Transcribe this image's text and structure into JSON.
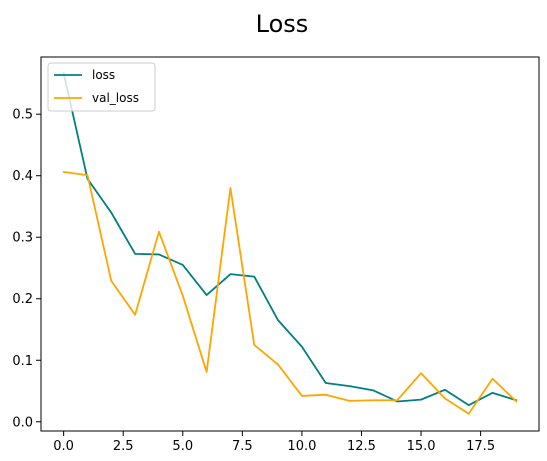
{
  "chart_data": {
    "type": "line",
    "title": "Loss",
    "xlabel": "",
    "ylabel": "",
    "xlim": [
      -0.95,
      19.95
    ],
    "ylim": [
      -0.015,
      0.593
    ],
    "xticks": [
      0.0,
      2.5,
      5.0,
      7.5,
      10.0,
      12.5,
      15.0,
      17.5
    ],
    "xtick_labels": [
      "0.0",
      "2.5",
      "5.0",
      "7.5",
      "10.0",
      "12.5",
      "15.0",
      "17.5"
    ],
    "yticks": [
      0.0,
      0.1,
      0.2,
      0.3,
      0.4,
      0.5
    ],
    "ytick_labels": [
      "0.0",
      "0.1",
      "0.2",
      "0.3",
      "0.4",
      "0.5"
    ],
    "grid": false,
    "legend_position": "top-left",
    "x": [
      0,
      1,
      2,
      3,
      4,
      5,
      6,
      7,
      8,
      9,
      10,
      11,
      12,
      13,
      14,
      15,
      16,
      17,
      18,
      19
    ],
    "series": [
      {
        "name": "loss",
        "color": "#008080",
        "values": [
          0.567,
          0.395,
          0.34,
          0.273,
          0.272,
          0.255,
          0.206,
          0.24,
          0.236,
          0.165,
          0.122,
          0.063,
          0.058,
          0.051,
          0.033,
          0.036,
          0.052,
          0.027,
          0.047,
          0.035
        ]
      },
      {
        "name": "val_loss",
        "color": "#FFA500",
        "values": [
          0.406,
          0.401,
          0.229,
          0.174,
          0.309,
          0.205,
          0.081,
          0.38,
          0.125,
          0.093,
          0.042,
          0.044,
          0.034,
          0.035,
          0.035,
          0.079,
          0.038,
          0.013,
          0.07,
          0.033
        ]
      }
    ]
  }
}
